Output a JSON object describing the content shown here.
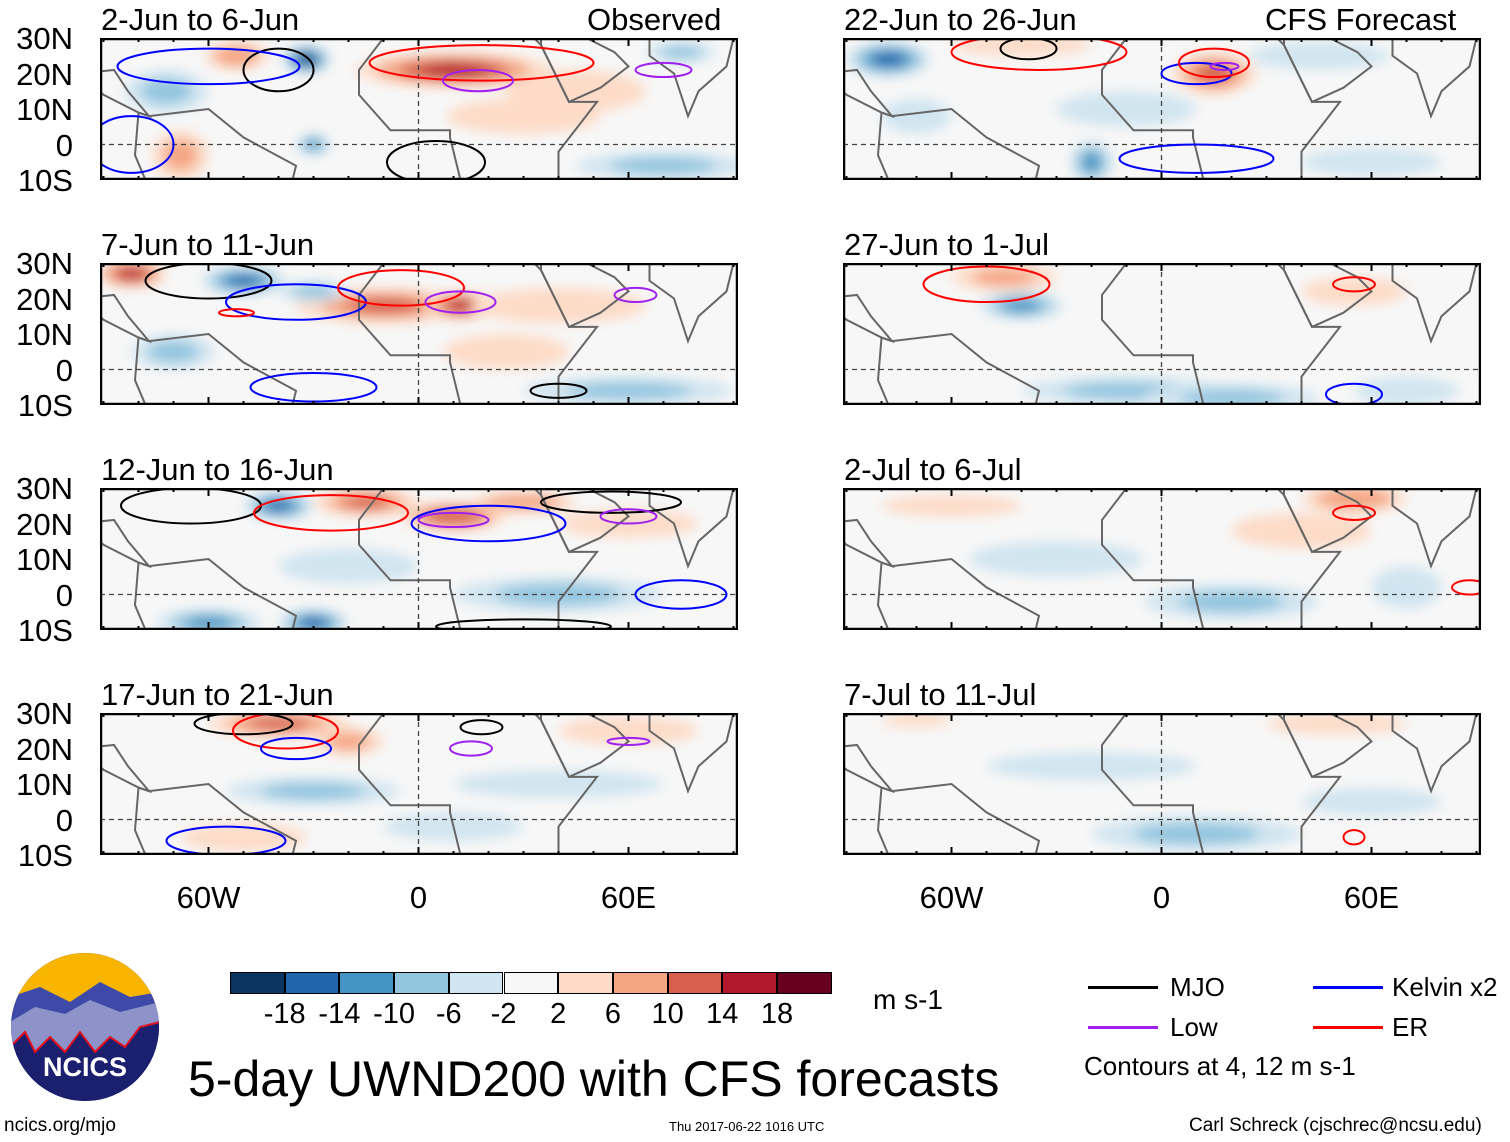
{
  "title": "5-day UWND200 with CFS forecasts",
  "header": {
    "observed": "Observed",
    "forecast": "CFS Forecast"
  },
  "lat_labels": [
    "30N",
    "20N",
    "10N",
    "0",
    "10S"
  ],
  "lon_labels": [
    "60W",
    "0",
    "60E"
  ],
  "units": "m s-1",
  "colorbar": {
    "labels": [
      "-18",
      "-14",
      "-10",
      "-6",
      "-2",
      "2",
      "6",
      "10",
      "14",
      "18"
    ],
    "colors": [
      "#0b3461",
      "#2166ac",
      "#4393c3",
      "#92c5de",
      "#d1e5f0",
      "#f7f7f7",
      "#fddbc7",
      "#f4a582",
      "#d6604d",
      "#b2182b",
      "#67001f"
    ],
    "levels": [
      -18,
      -14,
      -10,
      -6,
      -2,
      2,
      6,
      10,
      14,
      18
    ]
  },
  "legend": {
    "items": [
      {
        "label": "MJO",
        "color": "#000000"
      },
      {
        "label": "Kelvin x2",
        "color": "#0000ff"
      },
      {
        "label": "Low",
        "color": "#a020f0"
      },
      {
        "label": "ER",
        "color": "#ff0000"
      }
    ],
    "note": "Contours at 4, 12 m s-1"
  },
  "footer": {
    "left": "ncics.org/mjo",
    "center": "Thu 2017-06-22 1016 UTC",
    "right": "Carl Schreck (cjschrec@ncsu.edu)"
  },
  "logo": {
    "text": "NCICS"
  },
  "chart_data": {
    "type": "heatmap",
    "variable": "200-hPa zonal wind anomaly",
    "units": "m s-1",
    "lon_range": [
      -90,
      90
    ],
    "lat_range": [
      -10,
      30
    ],
    "panels": [
      {
        "title": "2-Jun to 6-Jun",
        "kind": "observed",
        "anomalies": [
          [
            10,
            21,
            28,
            5,
            16
          ],
          [
            -32,
            24,
            7,
            4,
            -18
          ],
          [
            -52,
            25,
            9,
            4,
            10
          ],
          [
            -72,
            15,
            12,
            6,
            -8
          ],
          [
            -68,
            -3,
            8,
            7,
            8
          ],
          [
            30,
            8,
            22,
            5,
            4
          ],
          [
            70,
            -6,
            25,
            4,
            -6
          ],
          [
            -30,
            0,
            5,
            3,
            -10
          ],
          [
            75,
            26,
            10,
            3,
            -6
          ],
          [
            45,
            15,
            20,
            6,
            4
          ]
        ],
        "contours": [
          [
            "mjo",
            -40,
            21,
            10,
            6
          ],
          [
            "mjo",
            5,
            -5,
            14,
            6
          ],
          [
            "kelvin",
            -60,
            22,
            26,
            5
          ],
          [
            "kelvin",
            -82,
            0,
            12,
            8
          ],
          [
            "er",
            18,
            23,
            32,
            5
          ],
          [
            "low",
            17,
            18,
            10,
            3
          ],
          [
            "low",
            70,
            21,
            8,
            2
          ]
        ]
      },
      {
        "title": "22-Jun to 26-Jun",
        "kind": "forecast",
        "anomalies": [
          [
            -78,
            24,
            12,
            5,
            -16
          ],
          [
            15,
            20,
            12,
            6,
            12
          ],
          [
            -40,
            28,
            20,
            3,
            6
          ],
          [
            -20,
            -5,
            6,
            6,
            -10
          ],
          [
            -10,
            10,
            20,
            5,
            -4
          ],
          [
            45,
            25,
            20,
            4,
            -4
          ],
          [
            -70,
            8,
            10,
            5,
            -4
          ],
          [
            60,
            -5,
            20,
            4,
            -4
          ]
        ],
        "contours": [
          [
            "mjo",
            -38,
            27,
            8,
            3
          ],
          [
            "er",
            -35,
            26,
            25,
            5
          ],
          [
            "kelvin",
            10,
            20,
            10,
            3
          ],
          [
            "kelvin",
            10,
            -4,
            22,
            4
          ],
          [
            "er",
            15,
            23,
            10,
            4
          ],
          [
            "low",
            18,
            22,
            4,
            1
          ]
        ]
      },
      {
        "title": "7-Jun to 11-Jun",
        "kind": "observed",
        "anomalies": [
          [
            -82,
            27,
            10,
            4,
            16
          ],
          [
            -50,
            25,
            12,
            4,
            -14
          ],
          [
            -10,
            18,
            25,
            5,
            12
          ],
          [
            12,
            18,
            10,
            4,
            16
          ],
          [
            -30,
            22,
            10,
            3,
            -8
          ],
          [
            25,
            5,
            18,
            5,
            4
          ],
          [
            60,
            -6,
            30,
            4,
            -6
          ],
          [
            -70,
            5,
            12,
            5,
            -6
          ],
          [
            40,
            18,
            25,
            5,
            4
          ]
        ],
        "contours": [
          [
            "mjo",
            -60,
            25,
            18,
            5
          ],
          [
            "kelvin",
            -35,
            19,
            20,
            5
          ],
          [
            "er",
            -5,
            23,
            18,
            5
          ],
          [
            "low",
            12,
            19,
            10,
            3
          ],
          [
            "kelvin",
            -30,
            -5,
            18,
            4
          ],
          [
            "mjo",
            40,
            -6,
            8,
            2
          ],
          [
            "low",
            62,
            21,
            6,
            2
          ],
          [
            "er",
            -52,
            16,
            5,
            1
          ]
        ]
      },
      {
        "title": "27-Jun to 1-Jul",
        "kind": "forecast",
        "anomalies": [
          [
            -45,
            26,
            15,
            4,
            8
          ],
          [
            -40,
            18,
            12,
            4,
            -10
          ],
          [
            -10,
            -6,
            30,
            4,
            -8
          ],
          [
            20,
            -8,
            25,
            4,
            -8
          ],
          [
            55,
            22,
            15,
            4,
            4
          ],
          [
            70,
            -6,
            15,
            4,
            -4
          ]
        ],
        "contours": [
          [
            "er",
            -50,
            24,
            18,
            5
          ],
          [
            "er",
            55,
            24,
            6,
            2
          ],
          [
            "kelvin",
            55,
            -7,
            8,
            3
          ]
        ]
      },
      {
        "title": "12-Jun to 16-Jun",
        "kind": "observed",
        "anomalies": [
          [
            -40,
            25,
            10,
            4,
            -16
          ],
          [
            -15,
            26,
            15,
            4,
            12
          ],
          [
            10,
            22,
            15,
            4,
            14
          ],
          [
            30,
            26,
            15,
            3,
            10
          ],
          [
            -60,
            -8,
            15,
            4,
            -10
          ],
          [
            -30,
            -8,
            10,
            4,
            -14
          ],
          [
            40,
            0,
            30,
            5,
            -6
          ],
          [
            -20,
            8,
            20,
            5,
            -4
          ],
          [
            60,
            20,
            20,
            4,
            4
          ]
        ],
        "contours": [
          [
            "mjo",
            -65,
            25,
            20,
            5
          ],
          [
            "er",
            -25,
            23,
            22,
            5
          ],
          [
            "kelvin",
            20,
            20,
            22,
            5
          ],
          [
            "low",
            10,
            21,
            10,
            2
          ],
          [
            "mjo",
            30,
            -9,
            25,
            2
          ],
          [
            "kelvin",
            75,
            0,
            13,
            4
          ],
          [
            "mjo",
            55,
            26,
            20,
            3
          ],
          [
            "low",
            60,
            22,
            8,
            2
          ]
        ]
      },
      {
        "title": "2-Jul to 6-Jul",
        "kind": "forecast",
        "anomalies": [
          [
            55,
            27,
            15,
            4,
            10
          ],
          [
            20,
            -2,
            25,
            5,
            -6
          ],
          [
            -30,
            10,
            25,
            5,
            -4
          ],
          [
            -60,
            25,
            20,
            3,
            4
          ],
          [
            70,
            2,
            10,
            6,
            -4
          ],
          [
            40,
            18,
            20,
            5,
            4
          ]
        ],
        "contours": [
          [
            "er",
            55,
            23,
            6,
            2
          ],
          [
            "er",
            88,
            2,
            5,
            2
          ]
        ]
      },
      {
        "title": "17-Jun to 21-Jun",
        "kind": "observed",
        "anomalies": [
          [
            -40,
            27,
            20,
            4,
            12
          ],
          [
            -20,
            22,
            10,
            4,
            8
          ],
          [
            -50,
            -5,
            18,
            4,
            4
          ],
          [
            10,
            -2,
            20,
            4,
            -4
          ],
          [
            60,
            25,
            20,
            4,
            6
          ],
          [
            -30,
            8,
            25,
            4,
            -6
          ],
          [
            40,
            10,
            30,
            4,
            -4
          ]
        ],
        "contours": [
          [
            "mjo",
            -50,
            27,
            14,
            3
          ],
          [
            "er",
            -38,
            25,
            15,
            5
          ],
          [
            "kelvin",
            -35,
            20,
            10,
            3
          ],
          [
            "kelvin",
            -55,
            -6,
            17,
            4
          ],
          [
            "low",
            15,
            20,
            6,
            2
          ],
          [
            "mjo",
            18,
            26,
            6,
            2
          ],
          [
            "low",
            60,
            22,
            6,
            1
          ]
        ]
      },
      {
        "title": "7-Jul to 11-Jul",
        "kind": "forecast",
        "anomalies": [
          [
            10,
            -4,
            30,
            5,
            -8
          ],
          [
            -20,
            15,
            30,
            4,
            -4
          ],
          [
            50,
            27,
            20,
            3,
            4
          ],
          [
            -70,
            28,
            10,
            2,
            4
          ],
          [
            60,
            5,
            20,
            4,
            -4
          ]
        ],
        "contours": [
          [
            "er",
            55,
            -5,
            3,
            2
          ]
        ]
      }
    ]
  }
}
